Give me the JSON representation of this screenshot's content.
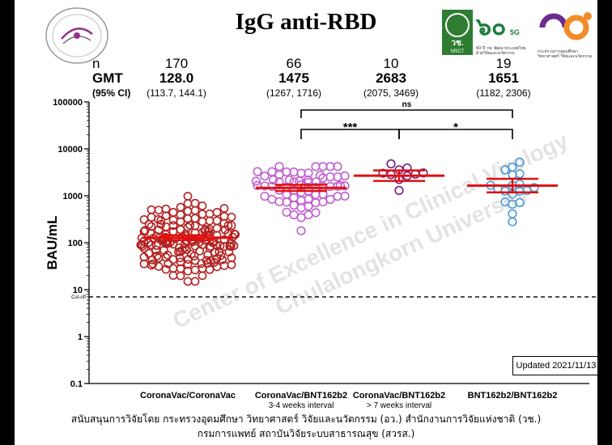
{
  "chart_data": {
    "type": "scatter",
    "title": "IgG anti-RBD",
    "ylabel": "BAU/mL",
    "yscale": "log",
    "ylim": [
      0.1,
      100000
    ],
    "yticks": [
      "0.1",
      "1",
      "10",
      "100",
      "1000",
      "10000",
      "100000"
    ],
    "cutoff": {
      "value": 7,
      "label": "Cut-off"
    },
    "header_labels": {
      "n": "n",
      "gmt": "GMT",
      "ci": "(95% CI)"
    },
    "groups": [
      {
        "label": "CoronaVac/CoronaVac",
        "sublabel": "",
        "n": "170",
        "gmt": "128.0",
        "ci": "(113.7, 144.1)",
        "gmt_value": 128.0,
        "ci_low": 113.7,
        "ci_high": 144.1,
        "min": 15,
        "max": 980,
        "color": "#b22222"
      },
      {
        "label": "CoronaVac/BNT162b2",
        "sublabel": "3-4 weeks interval",
        "n": "66",
        "gmt": "1475",
        "ci": "(1267, 1716)",
        "gmt_value": 1475,
        "ci_low": 1267,
        "ci_high": 1716,
        "min": 180,
        "max": 4200,
        "color": "#c060d0"
      },
      {
        "label": "CoronaVac/BNT162b2",
        "sublabel": "> 7 weeks interval",
        "n": "10",
        "gmt": "2683",
        "ci": "(2075, 3469)",
        "gmt_value": 2683,
        "ci_low": 2075,
        "ci_high": 3469,
        "min": 1300,
        "max": 4800,
        "color": "#7b1e7b"
      },
      {
        "label": "BNT162b2/BNT162b2",
        "sublabel": "",
        "n": "19",
        "gmt": "1651",
        "ci": "(1182, 2306)",
        "gmt_value": 1651,
        "ci_low": 1182,
        "ci_high": 2306,
        "min": 280,
        "max": 5200,
        "color": "#4a9ad4"
      }
    ],
    "comparisons": [
      {
        "from": 1,
        "to": 3,
        "label": "ns"
      },
      {
        "from": 1,
        "to": 2,
        "label": "***"
      },
      {
        "from": 2,
        "to": 3,
        "label": "*"
      }
    ],
    "watermark": [
      "Center of Excellence in Clinical Virology",
      "Chulalongkorn University"
    ]
  },
  "updated": "Updated 2021/11/13",
  "logos": {
    "nrct_text": "วช.",
    "nrct_sub": "NRCT",
    "anniv_text": "๖๐",
    "anniv_sub": "5G",
    "anniv_caption": "60 ปี วช. พัฒนาประเทศไทย ด้วยวิจัยและนวัตกรรม",
    "mhesi_caption": "กระทรวงการอุดมศึกษา วิทยาศาสตร์ วิจัยและนวัตกรรม"
  },
  "footer": {
    "line1": "สนับสนุนการวิจัยโดย กระทรวงอุดมศึกษา วิทยาศาสตร์ วิจัยและนวัตกรรม (อว.) สำนักงานการวิจัยแห่งชาติ (วช.)",
    "line2": "กรมการแพทย์ สถาบันวิจัยระบบสาธารณสุข (สวรส.)"
  }
}
